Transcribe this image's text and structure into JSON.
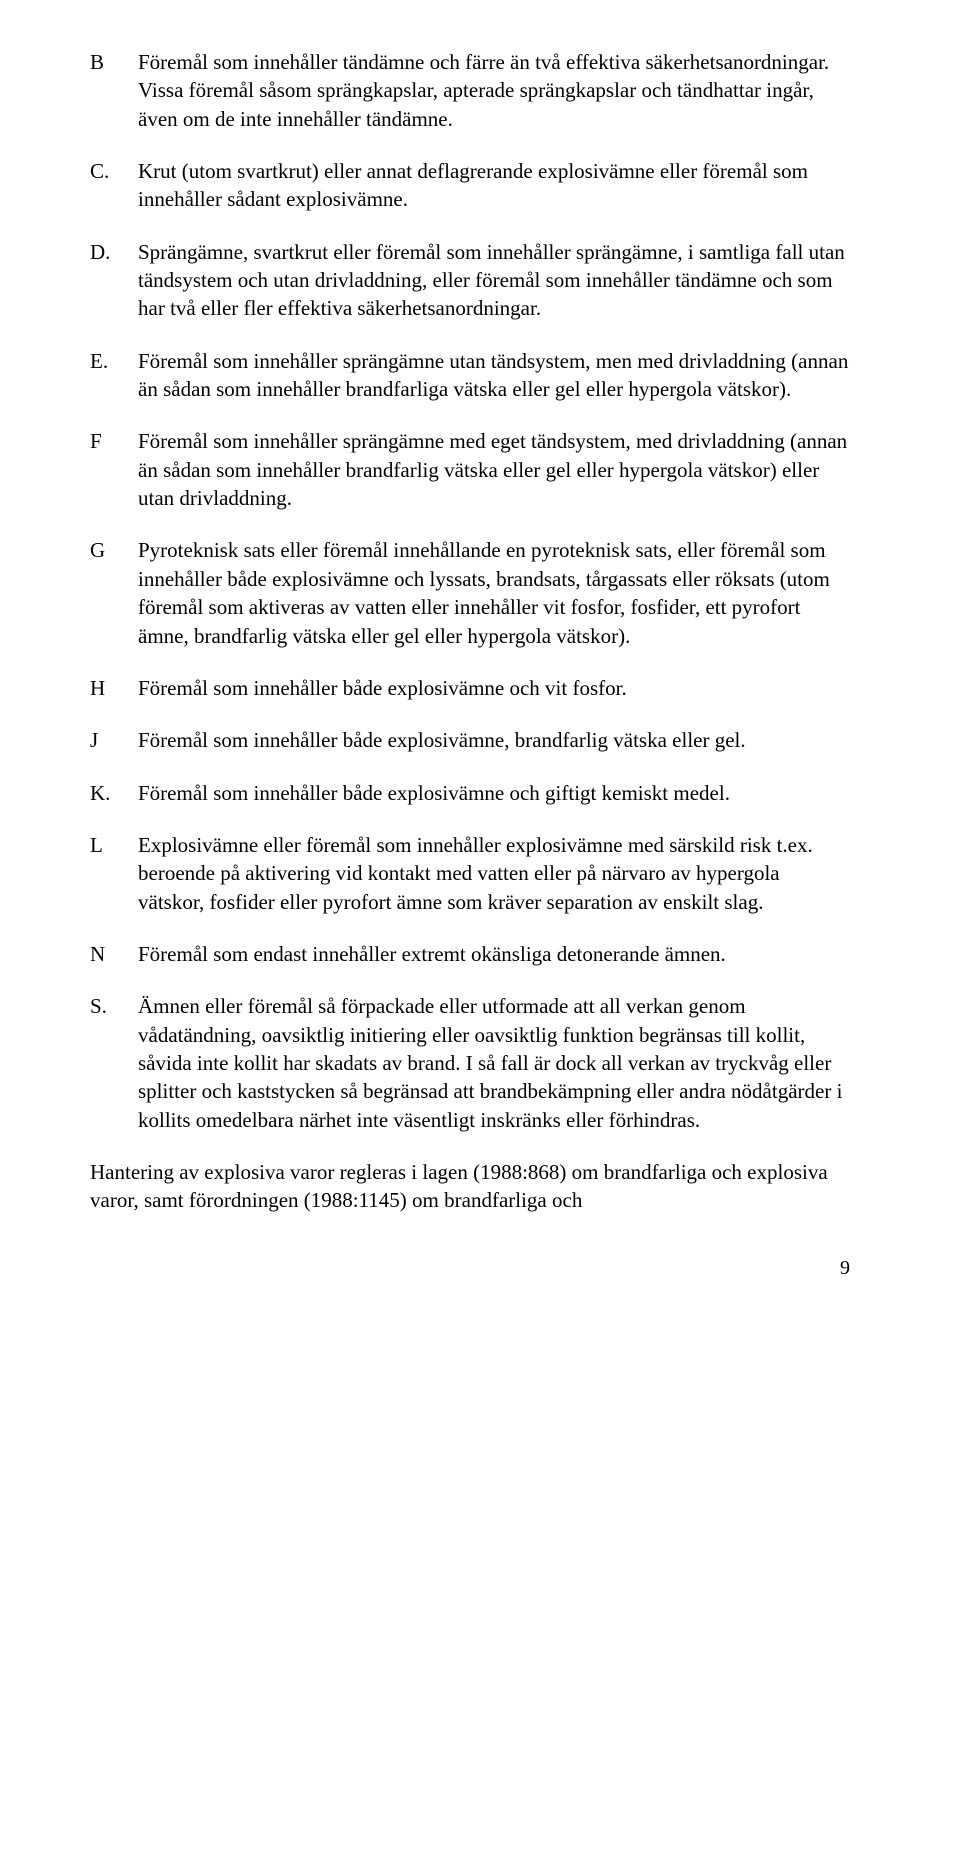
{
  "items": [
    {
      "letter": "B",
      "text": "Föremål som innehåller tändämne och färre än två effektiva säkerhetsanordningar. Vissa föremål såsom sprängkapslar, apterade sprängkapslar och tändhattar ingår, även om de inte innehåller tändämne."
    },
    {
      "letter": "C.",
      "text": "Krut (utom svartkrut) eller annat deflagrerande explosivämne eller föremål som innehåller sådant explosivämne."
    },
    {
      "letter": "D.",
      "text": "Sprängämne, svartkrut eller föremål som innehåller sprängämne, i samtliga fall utan tändsystem och utan drivladdning, eller föremål som innehåller tändämne och som har två eller fler effektiva säkerhets­anordningar."
    },
    {
      "letter": "E.",
      "text": "Föremål som innehåller sprängämne utan tändsystem, men med drivladdning (annan än sådan som innehåller brandfarliga vätska eller gel eller hypergola vätskor)."
    },
    {
      "letter": "F",
      "text": "Föremål som innehåller sprängämne med eget tändsystem, med drivladdning (annan än sådan som innehåller brandfarlig vätska eller gel eller hypergola vätskor) eller utan drivladdning."
    },
    {
      "letter": "G",
      "text": "Pyroteknisk sats eller föremål innehållande en pyroteknisk sats, eller föremål som innehåller både explosivämne och lyssats, brandsats, tårgassats eller röksats (utom föremål som aktiveras av vatten eller innehåller vit fosfor, fosfider, ett pyrofort ämne, brandfarlig vätska eller gel eller hypergola vätskor)."
    },
    {
      "letter": "H",
      "text": "Föremål som innehåller både explosivämne och vit fosfor."
    },
    {
      "letter": "J",
      "text": "Föremål som innehåller både explosivämne, brandfarlig vätska eller gel."
    },
    {
      "letter": "K.",
      "text": "Föremål som innehåller både explosivämne och giftigt kemiskt medel."
    },
    {
      "letter": "L",
      "text": "Explosivämne eller föremål som innehåller explosivämne med särskild risk  t.ex. beroende på aktivering vid kontakt med vatten eller på närvaro av hypergola vätskor, fosfider eller pyrofort ämne som kräver separation av enskilt slag."
    },
    {
      "letter": "N",
      "text": "Föremål som endast innehåller extremt okänsliga detonerande ämnen."
    },
    {
      "letter": "S.",
      "text": "Ämnen eller föremål så förpackade eller utformade att all verkan genom vådatändning, oavsiktlig initiering eller oavsiktlig funktion begränsas till kollit, såvida inte kollit har skadats av brand. I så fall är dock all verkan av tryckvåg eller splitter och kaststycken så begränsad att brandbekämpning eller andra nödåtgärder i kollits omedelbara närhet inte väsentligt inskränks eller förhindras."
    }
  ],
  "closing": "Hantering av explosiva varor regleras i lagen (1988:868) om brandfarliga och explosiva varor, samt förordningen (1988:1145) om brandfarliga och",
  "pageNumber": "9"
}
